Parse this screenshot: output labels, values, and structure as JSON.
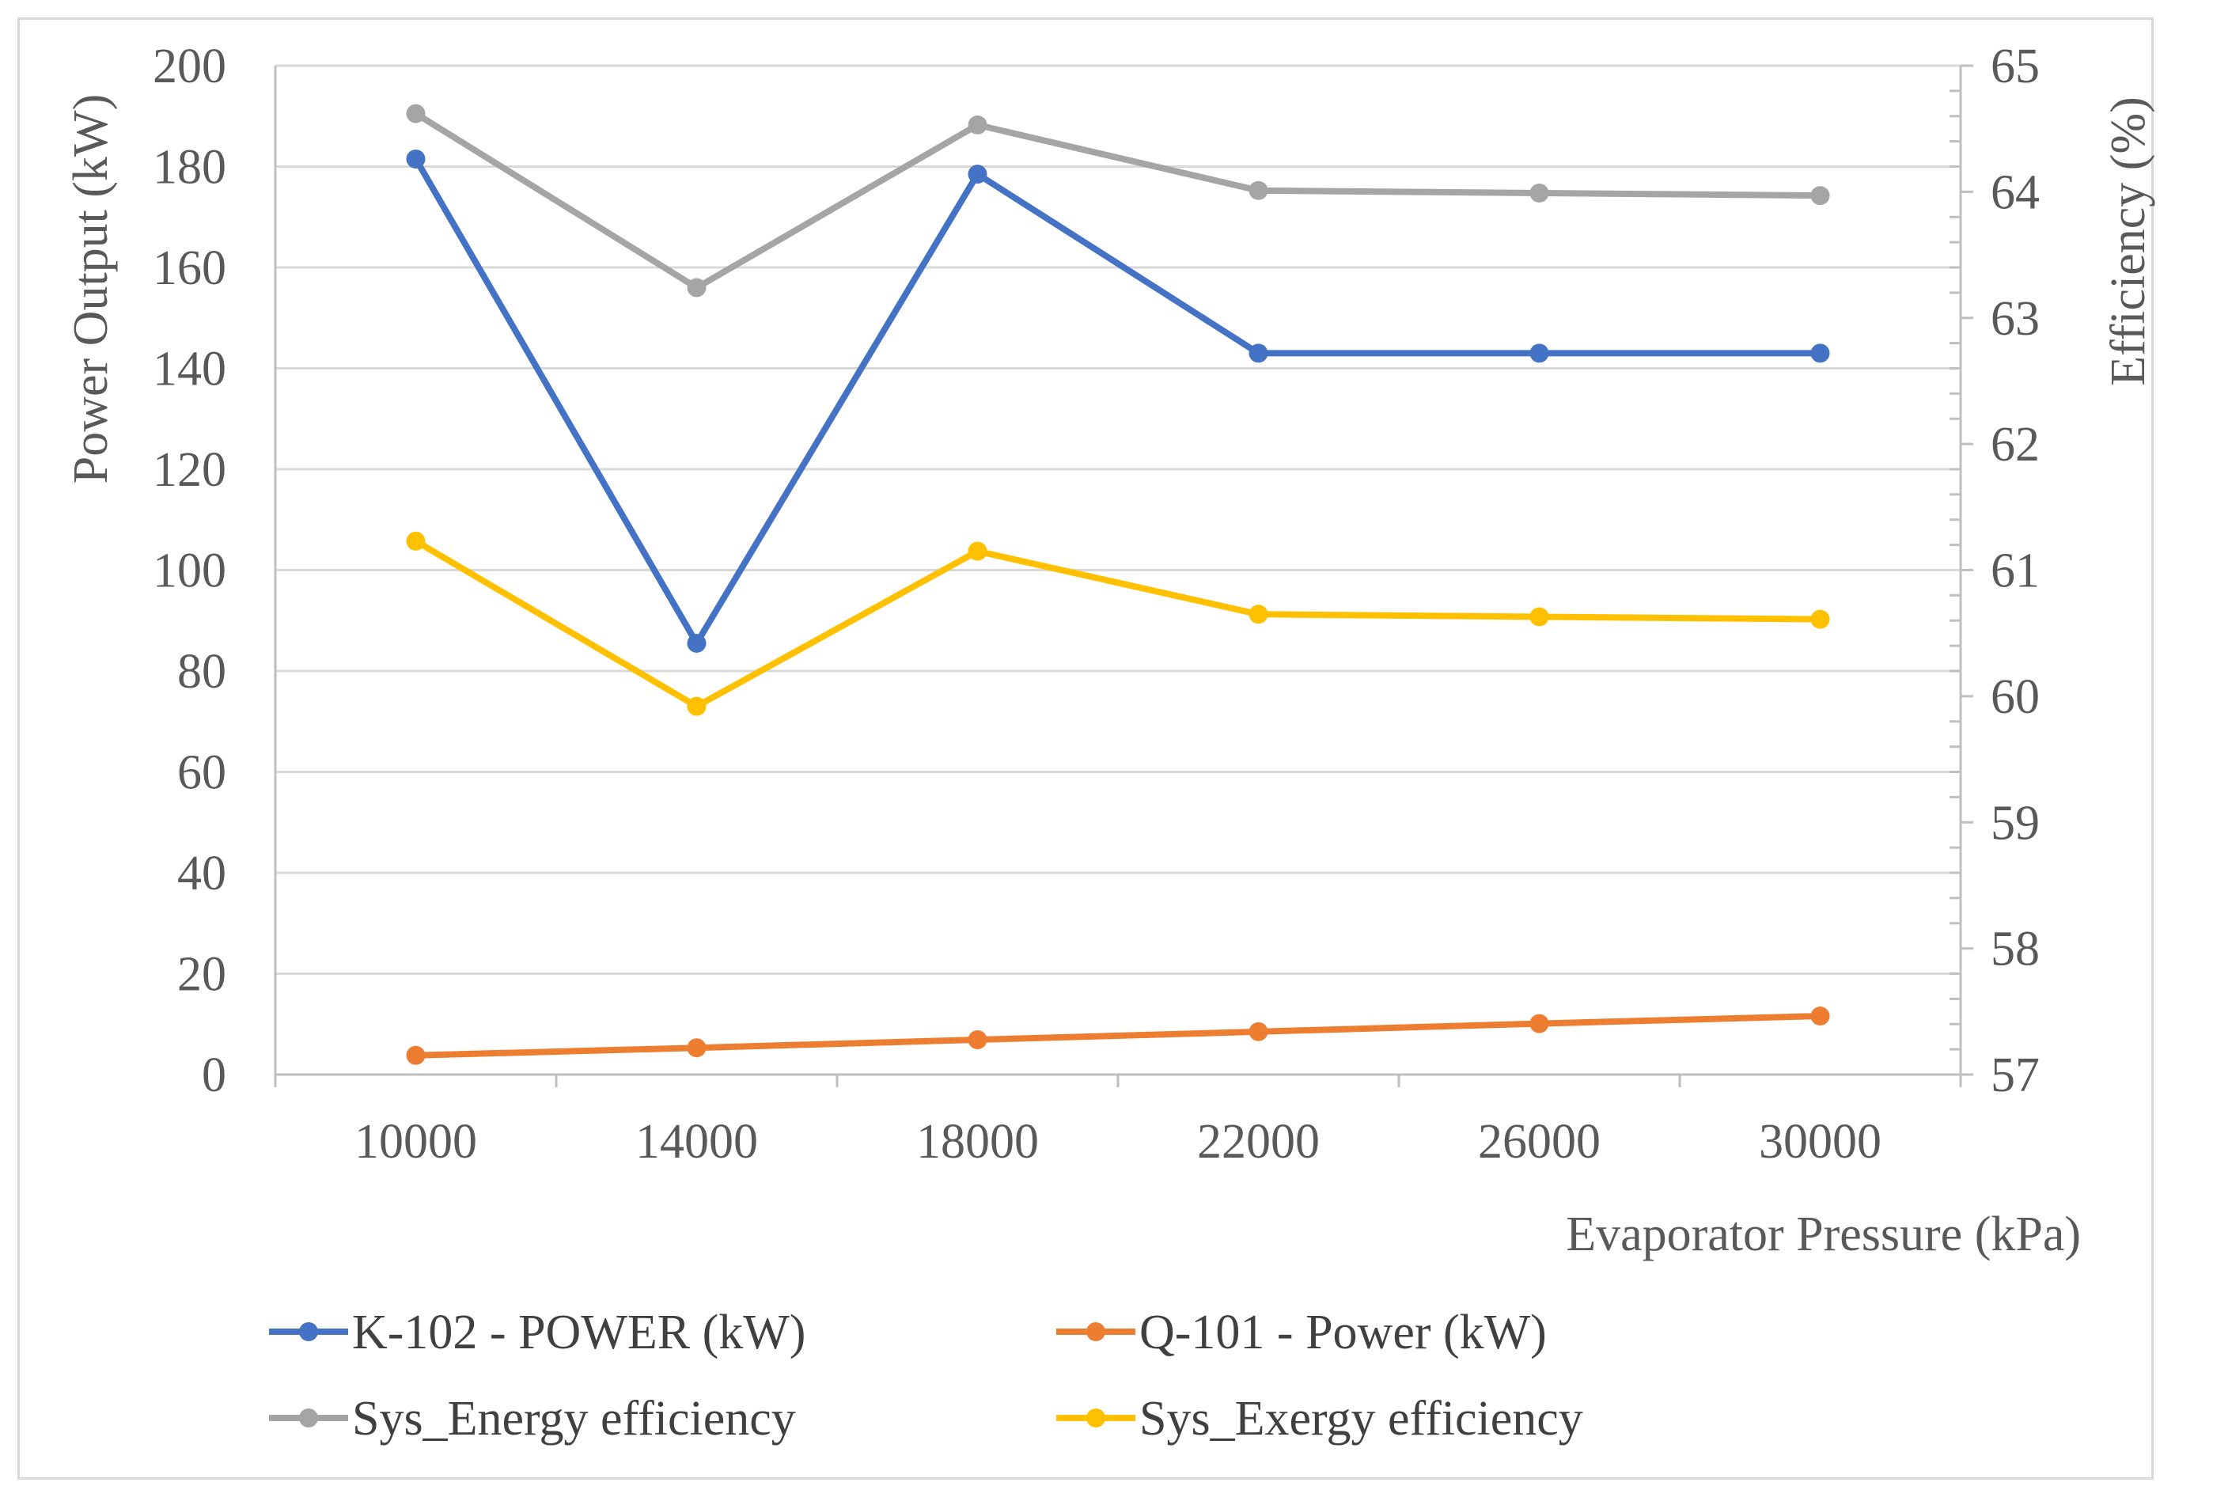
{
  "chart_data": {
    "type": "line",
    "title": "",
    "xlabel": "Evaporator Pressure (kPa)",
    "ylabel": "Power Output (kW)",
    "y2label": "Efficiency (%)",
    "categories": [
      "10000",
      "14000",
      "18000",
      "22000",
      "26000",
      "30000"
    ],
    "x_tick_labels": [
      "10000",
      "14000",
      "18000",
      "22000",
      "26000",
      "30000"
    ],
    "ylim": [
      0,
      200
    ],
    "y_ticks": [
      0,
      20,
      40,
      60,
      80,
      100,
      120,
      140,
      160,
      180,
      200
    ],
    "y2lim": [
      57,
      65
    ],
    "y2_ticks": [
      57,
      58,
      59,
      60,
      61,
      62,
      63,
      64,
      65
    ],
    "grid": true,
    "legend_position": "bottom",
    "series": [
      {
        "name": "K-102 - POWER (kW)",
        "axis": "left",
        "color": "#4472c4",
        "values": [
          181.5,
          85.5,
          178.5,
          143,
          143,
          143
        ]
      },
      {
        "name": "Q-101 - Power (kW)",
        "axis": "left",
        "color": "#ed7d31",
        "values": [
          3.8,
          5.3,
          6.9,
          8.5,
          10.1,
          11.6
        ]
      },
      {
        "name": "Sys_Energy efficiency",
        "axis": "right",
        "color": "#a5a5a5",
        "values": [
          64.62,
          63.24,
          64.53,
          64.01,
          63.99,
          63.97
        ]
      },
      {
        "name": "Sys_Exergy efficiency",
        "axis": "right",
        "color": "#ffc000",
        "values": [
          61.23,
          59.92,
          61.15,
          60.65,
          60.63,
          60.61
        ]
      }
    ]
  }
}
